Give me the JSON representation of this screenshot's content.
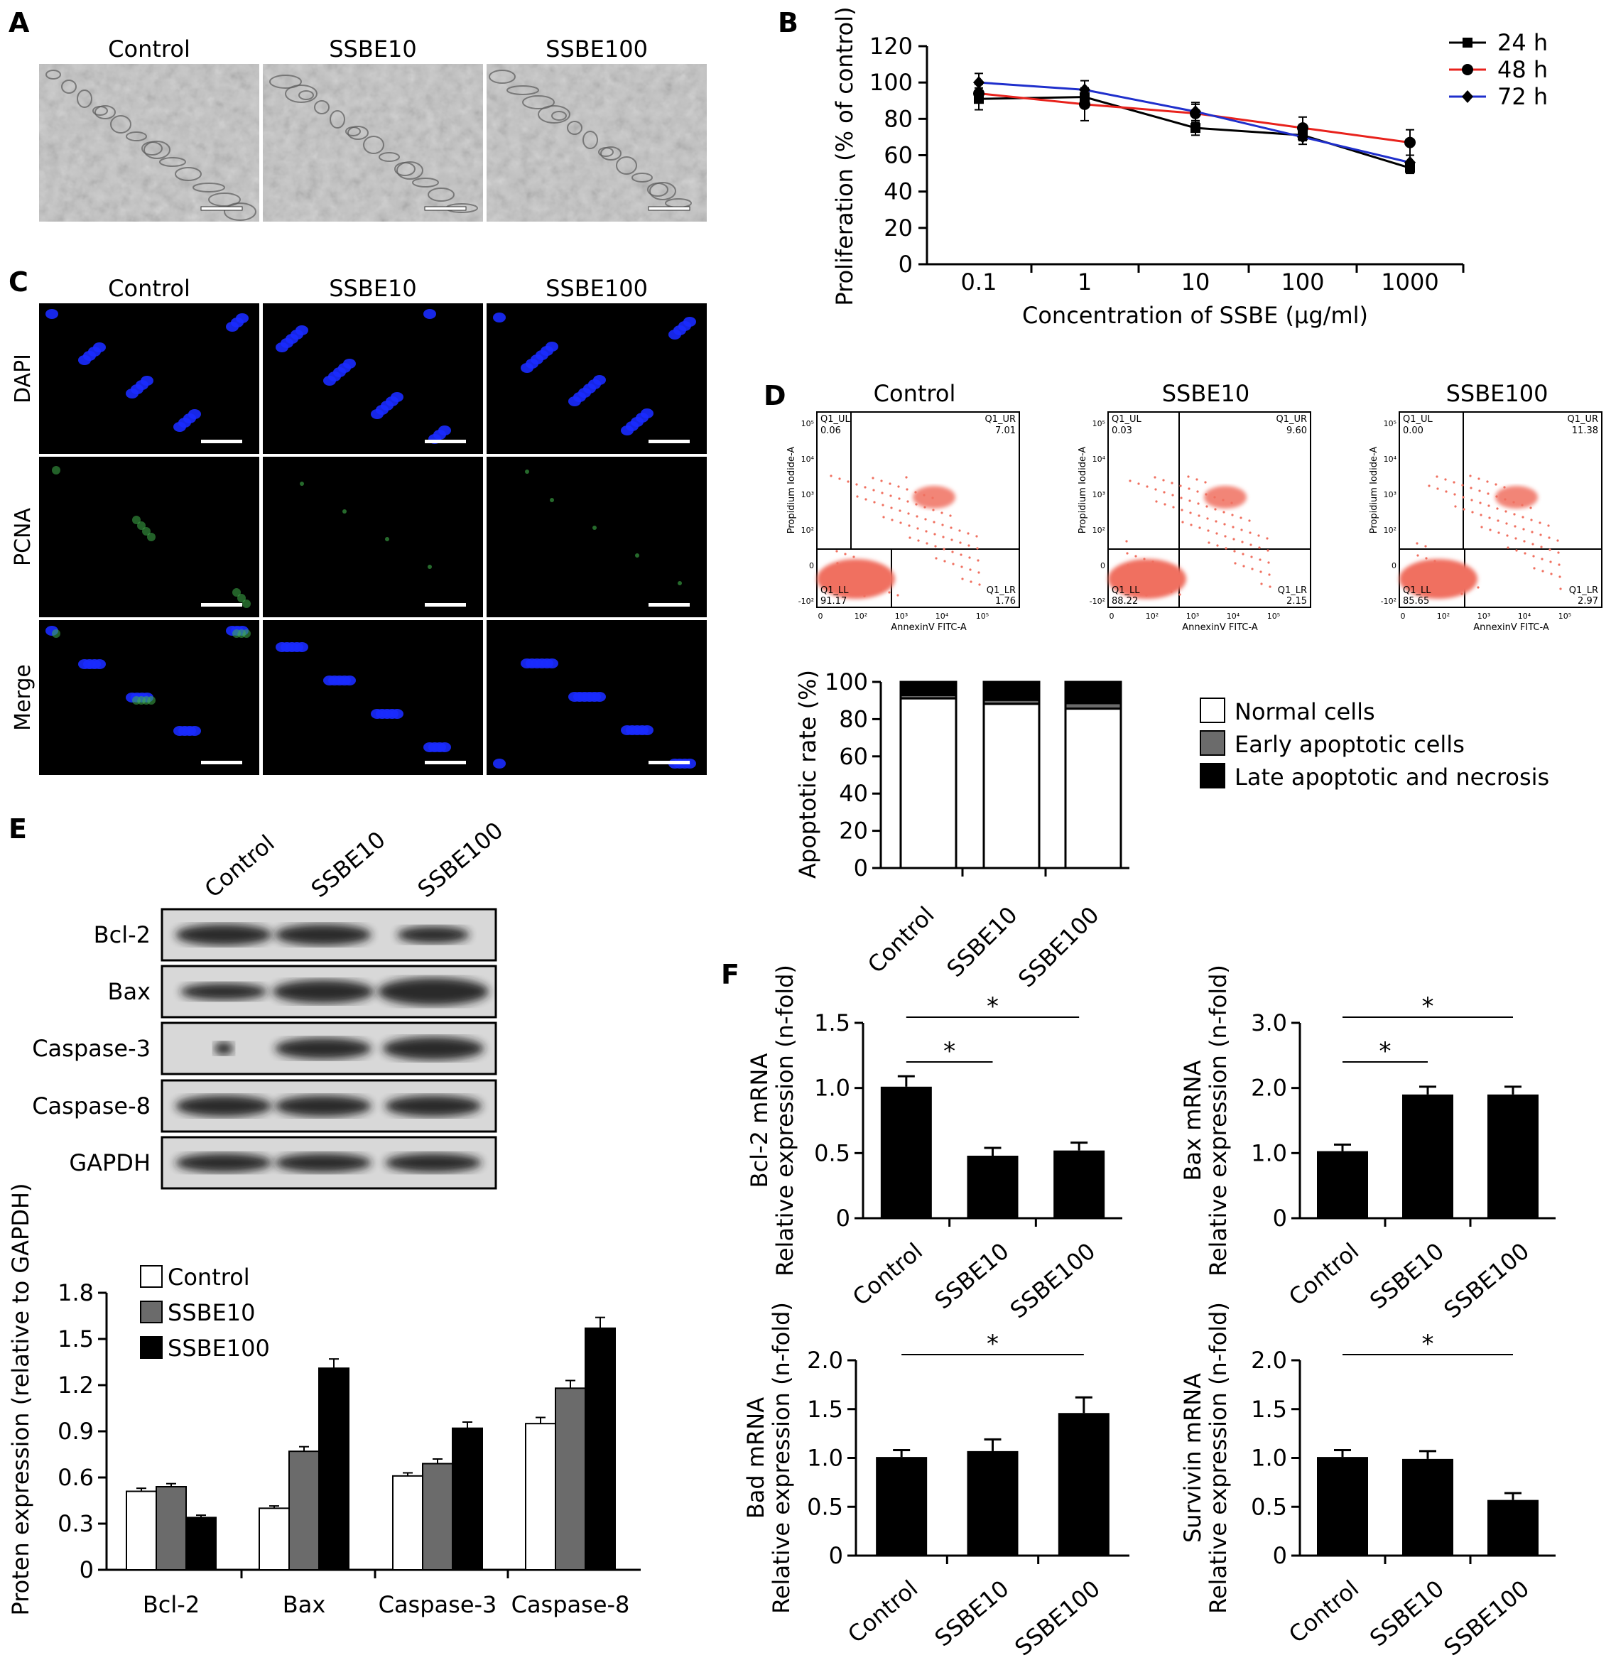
{
  "panels": {
    "A": {
      "letter": "A",
      "labels": [
        "Control",
        "SSBE10",
        "SSBE100"
      ]
    },
    "C": {
      "letter": "C",
      "labels": [
        "Control",
        "SSBE10",
        "SSBE100"
      ],
      "rows": [
        "DAPI",
        "PCNA",
        "Merge"
      ]
    },
    "D": {
      "letter": "D",
      "labels": [
        "Control",
        "SSBE10",
        "SSBE100"
      ],
      "flow": [
        {
          "UL": "0.06",
          "UR": "7.01",
          "LL": "91.17",
          "LR": "1.76"
        },
        {
          "UL": "0.03",
          "UR": "9.60",
          "LL": "88.22",
          "LR": "2.15"
        },
        {
          "UL": "0.00",
          "UR": "11.38",
          "LL": "85.65",
          "LR": "2.97"
        }
      ],
      "quadrant_names": {
        "UL": "Q1_UL",
        "UR": "Q1_UR",
        "LL": "Q1_LL",
        "LR": "Q1_LR"
      },
      "flow_xlabel": "AnnexinV FITC-A",
      "flow_ylabel": "Propidium Iodide-A",
      "flow_ticks": [
        "0",
        "10²",
        "10³",
        "10⁴",
        "10⁵"
      ],
      "flow_yticks": [
        "-10²",
        "0",
        "10²",
        "10³",
        "10⁴",
        "10⁵"
      ]
    },
    "E": {
      "letter": "E",
      "lanes": [
        "Control",
        "SSBE10",
        "SSBE100"
      ],
      "bands": [
        "Bcl-2",
        "Bax",
        "Caspase-3",
        "Caspase-8",
        "GAPDH"
      ]
    },
    "F": {
      "letter": "F"
    },
    "B": {
      "letter": "B"
    }
  },
  "colors": {
    "blot_bg": "#d8d8d8",
    "dapi": "#1a2bff",
    "pcna": "#3fb04a",
    "red": "#e8221c",
    "blue": "#1f2fcc",
    "flow_dot": "#f07060",
    "gray_bar": "#6b6b6b"
  },
  "chart_data": [
    {
      "id": "B",
      "type": "line",
      "x": [
        "0.1",
        "1",
        "10",
        "100",
        "1000"
      ],
      "xlabel": "Concentration of SSBE (μg/ml)",
      "ylabel": "Proliferation (% of control)",
      "ylim": [
        0,
        120
      ],
      "yticks": [
        "0",
        "20",
        "40",
        "60",
        "80",
        "100",
        "120"
      ],
      "legend": "top-right",
      "series": [
        {
          "name": "24 h",
          "color": "#000000",
          "marker": "square",
          "values": [
            91,
            92,
            75,
            71,
            53
          ],
          "err": [
            6,
            5,
            4,
            3,
            3
          ]
        },
        {
          "name": "48 h",
          "color": "#e8221c",
          "marker": "circle",
          "values": [
            94,
            88,
            83,
            75,
            67
          ],
          "err": [
            5,
            9,
            5,
            6,
            7
          ]
        },
        {
          "name": "72 h",
          "color": "#1f2fcc",
          "marker": "diamond",
          "values": [
            100,
            96,
            84,
            70,
            56
          ],
          "err": [
            5,
            5,
            5,
            4,
            4
          ]
        }
      ]
    },
    {
      "id": "D",
      "type": "bar",
      "stacked": true,
      "categories": [
        "Control",
        "SSBE10",
        "SSBE100"
      ],
      "ylabel": "Apoptotic rate (%)",
      "ylim": [
        0,
        100
      ],
      "yticks": [
        "0",
        "20",
        "40",
        "60",
        "80",
        "100"
      ],
      "legend": "right",
      "series": [
        {
          "name": "Normal cells",
          "color": "#ffffff",
          "values": [
            91.17,
            88.22,
            85.65
          ]
        },
        {
          "name": "Early apoptotic cells",
          "color": "#6b6b6b",
          "values": [
            1.76,
            2.15,
            2.97
          ]
        },
        {
          "name": "Late apoptotic and necrosis",
          "color": "#000000",
          "values": [
            7.07,
            9.63,
            11.38
          ]
        }
      ]
    },
    {
      "id": "E",
      "type": "bar",
      "categories": [
        "Bcl-2",
        "Bax",
        "Caspase-3",
        "Caspase-8"
      ],
      "ylabel": "Proten expression (relative to GAPDH)",
      "ylim": [
        0,
        1.8
      ],
      "yticks": [
        "0",
        "0.3",
        "0.6",
        "0.9",
        "1.2",
        "1.5",
        "1.8"
      ],
      "legend": "top-left",
      "series": [
        {
          "name": "Control",
          "color": "#ffffff",
          "values": [
            0.51,
            0.4,
            0.61,
            0.95
          ],
          "err": [
            0.02,
            0.015,
            0.02,
            0.04
          ]
        },
        {
          "name": "SSBE10",
          "color": "#6b6b6b",
          "values": [
            0.54,
            0.77,
            0.69,
            1.18
          ],
          "err": [
            0.02,
            0.03,
            0.03,
            0.05
          ]
        },
        {
          "name": "SSBE100",
          "color": "#000000",
          "values": [
            0.34,
            1.31,
            0.92,
            1.57
          ],
          "err": [
            0.015,
            0.06,
            0.04,
            0.07
          ]
        }
      ]
    },
    {
      "id": "F1",
      "type": "bar",
      "categories": [
        "Control",
        "SSBE10",
        "SSBE100"
      ],
      "ylabel": [
        "Bcl-2 mRNA",
        "Relative expression (n-fold)"
      ],
      "ylim": [
        0,
        1.5
      ],
      "yticks": [
        "0",
        "0.5",
        "1.0",
        "1.5"
      ],
      "values": [
        1.01,
        0.48,
        0.52
      ],
      "err": [
        0.08,
        0.06,
        0.06
      ],
      "sig": [
        {
          "from": 0,
          "to": 1,
          "label": "*"
        },
        {
          "from": 0,
          "to": 2,
          "label": "*"
        }
      ]
    },
    {
      "id": "F2",
      "type": "bar",
      "categories": [
        "Control",
        "SSBE10",
        "SSBE100"
      ],
      "ylabel": [
        "Bax mRNA",
        "Relative expression (n-fold)"
      ],
      "ylim": [
        0,
        3.0
      ],
      "yticks": [
        "0",
        "1.0",
        "2.0",
        "3.0"
      ],
      "values": [
        1.03,
        1.9,
        1.9
      ],
      "err": [
        0.1,
        0.12,
        0.12
      ],
      "sig": [
        {
          "from": 0,
          "to": 1,
          "label": "*"
        },
        {
          "from": 0,
          "to": 2,
          "label": "*"
        }
      ]
    },
    {
      "id": "F3",
      "type": "bar",
      "categories": [
        "Control",
        "SSBE10",
        "SSBE100"
      ],
      "ylabel": [
        "Bad mRNA",
        "Relative expression (n-fold)"
      ],
      "ylim": [
        0,
        2.0
      ],
      "yticks": [
        "0",
        "0.5",
        "1.0",
        "1.5",
        "2.0"
      ],
      "values": [
        1.01,
        1.07,
        1.46
      ],
      "err": [
        0.07,
        0.12,
        0.16
      ],
      "sig": [
        {
          "from": 0,
          "to": 2,
          "label": "*"
        }
      ]
    },
    {
      "id": "F4",
      "type": "bar",
      "categories": [
        "Control",
        "SSBE10",
        "SSBE100"
      ],
      "ylabel": [
        "Survivin mRNA",
        "Relative expression (n-fold)"
      ],
      "ylim": [
        0,
        2.0
      ],
      "yticks": [
        "0",
        "0.5",
        "1.0",
        "1.5",
        "2.0"
      ],
      "values": [
        1.01,
        0.99,
        0.57
      ],
      "err": [
        0.07,
        0.08,
        0.07
      ],
      "sig": [
        {
          "from": 0,
          "to": 2,
          "label": "*"
        }
      ]
    }
  ]
}
